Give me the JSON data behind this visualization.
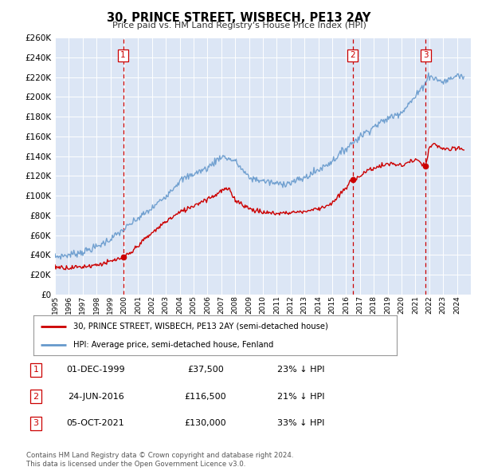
{
  "title": "30, PRINCE STREET, WISBECH, PE13 2AY",
  "subtitle": "Price paid vs. HM Land Registry's House Price Index (HPI)",
  "ylim": [
    0,
    260000
  ],
  "plot_bg_color": "#dce6f5",
  "grid_color": "#ffffff",
  "hpi_color": "#6699cc",
  "price_color": "#cc0000",
  "vline_color": "#cc0000",
  "transactions": [
    {
      "label": "1",
      "date_num": 1999.92,
      "price": 37500,
      "year_label": "01-DEC-1999",
      "price_label": "£37,500",
      "pct_label": "23% ↓ HPI"
    },
    {
      "label": "2",
      "date_num": 2016.47,
      "price": 116500,
      "year_label": "24-JUN-2016",
      "price_label": "£116,500",
      "pct_label": "21% ↓ HPI"
    },
    {
      "label": "3",
      "date_num": 2021.75,
      "price": 130000,
      "year_label": "05-OCT-2021",
      "price_label": "£130,000",
      "pct_label": "33% ↓ HPI"
    }
  ],
  "legend_line1": "30, PRINCE STREET, WISBECH, PE13 2AY (semi-detached house)",
  "legend_line2": "HPI: Average price, semi-detached house, Fenland",
  "footnote1": "Contains HM Land Registry data © Crown copyright and database right 2024.",
  "footnote2": "This data is licensed under the Open Government Licence v3.0.",
  "xmin": 1995,
  "xmax": 2025,
  "hpi_anchors_x": [
    1995,
    1996,
    1997,
    1998,
    1999,
    2000,
    2001,
    2002,
    2003,
    2004,
    2005,
    2006,
    2007,
    2008,
    2009,
    2010,
    2011,
    2012,
    2013,
    2014,
    2015,
    2016,
    2017,
    2018,
    2019,
    2020,
    2021,
    2021.5,
    2022,
    2022.5,
    2023,
    2023.5,
    2024,
    2024.5
  ],
  "hpi_anchors_y": [
    38000,
    40000,
    43000,
    48000,
    56000,
    66000,
    77000,
    87000,
    100000,
    115000,
    122000,
    128000,
    140000,
    135000,
    118000,
    115000,
    112000,
    113000,
    118000,
    126000,
    135000,
    148000,
    160000,
    170000,
    178000,
    185000,
    200000,
    210000,
    222000,
    218000,
    215000,
    218000,
    222000,
    220000
  ],
  "price_anchors_x": [
    1995,
    1996,
    1997,
    1998,
    1999,
    1999.92,
    2000.5,
    2001,
    2002,
    2003,
    2004,
    2005,
    2006,
    2006.5,
    2007,
    2007.5,
    2008,
    2009,
    2010,
    2011,
    2012,
    2013,
    2014,
    2015,
    2016,
    2016.47,
    2017,
    2017.5,
    2018,
    2018.5,
    2019,
    2019.5,
    2020,
    2020.5,
    2021,
    2021.75,
    2022,
    2022.3,
    2022.6,
    2023,
    2023.5,
    2024,
    2024.5
  ],
  "price_anchors_y": [
    28000,
    27000,
    28000,
    30000,
    33000,
    37500,
    42000,
    50000,
    62000,
    74000,
    83000,
    90000,
    97000,
    100000,
    105000,
    107000,
    96000,
    87000,
    83000,
    82000,
    83000,
    84000,
    87000,
    92000,
    108000,
    116500,
    120000,
    125000,
    128000,
    130000,
    132000,
    132000,
    130000,
    134000,
    136000,
    130000,
    148000,
    152000,
    150000,
    148000,
    146000,
    148000,
    147000
  ]
}
